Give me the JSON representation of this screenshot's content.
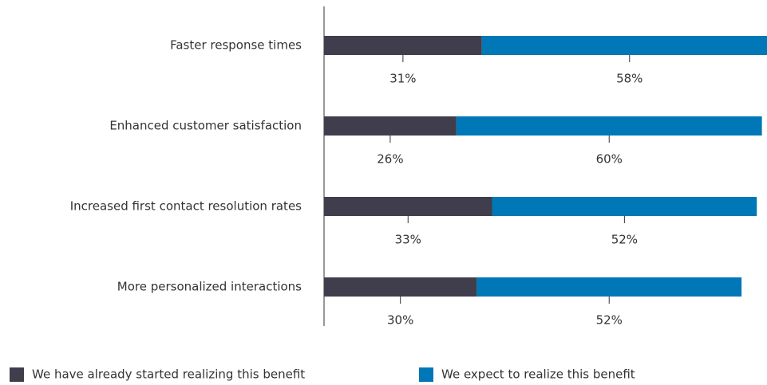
{
  "chart_data": {
    "type": "stacked-barh",
    "categories": [
      "Faster response times",
      "Enhanced customer satisfaction",
      "Increased first contact resolution rates",
      "More personalized interactions"
    ],
    "series": [
      {
        "name": "We have already started realizing this benefit",
        "color": "#403e4c",
        "values": [
          31,
          26,
          33,
          30
        ],
        "value_labels": [
          "31%",
          "26%",
          "33%",
          "30%"
        ]
      },
      {
        "name": "We expect to realize this benefit",
        "color": "#0077b6",
        "values": [
          58,
          60,
          52,
          52
        ],
        "value_labels": [
          "58%",
          "60%",
          "52%",
          "52%"
        ]
      }
    ],
    "xlim": [
      0,
      87
    ],
    "legend": "bottom"
  }
}
